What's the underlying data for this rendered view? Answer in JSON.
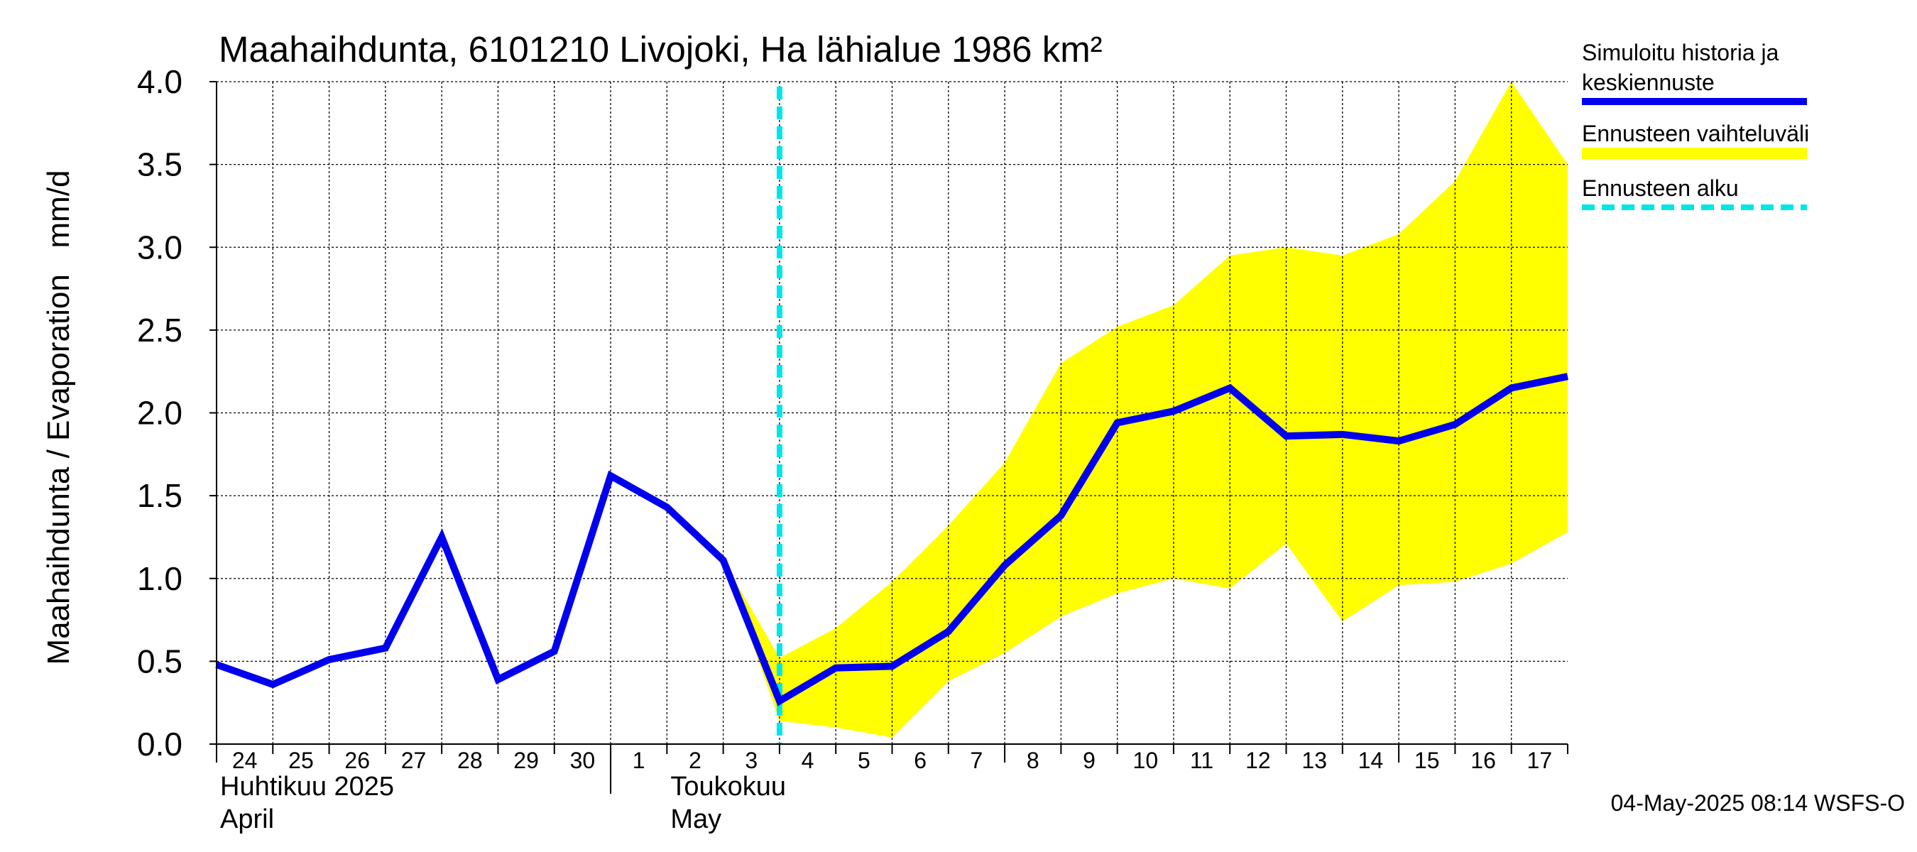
{
  "chart_data": {
    "type": "line",
    "title": "Maahaihdunta, 6101210 Livojoki, Ha lähialue 1986 km²",
    "ylabel": "Maahaihdunta / Evaporation   mm/d",
    "ylim": [
      0,
      4
    ],
    "y_ticks": [
      "0.0",
      "0.5",
      "1.0",
      "1.5",
      "2.0",
      "2.5",
      "3.0",
      "3.5",
      "4.0"
    ],
    "x_day_labels": [
      "24",
      "25",
      "26",
      "27",
      "28",
      "29",
      "30",
      "1",
      "2",
      "3",
      "4",
      "5",
      "6",
      "7",
      "8",
      "9",
      "10",
      "11",
      "12",
      "13",
      "14",
      "15",
      "16",
      "17"
    ],
    "month_labels": [
      {
        "fi": "Huhtikuu  2025",
        "en": "April"
      },
      {
        "fi": "Toukokuu",
        "en": "May"
      }
    ],
    "grid": true,
    "legend_position": "right",
    "series": [
      {
        "name": "Simuloitu historia ja keskiennuste",
        "color": "#0000ee",
        "x_days": [
          0,
          1,
          2,
          3,
          4,
          5,
          6,
          7,
          8,
          9,
          10,
          11,
          12,
          13,
          14,
          15,
          16,
          17,
          18,
          19,
          20,
          21,
          22,
          23,
          24
        ],
        "values": [
          0.48,
          0.36,
          0.51,
          0.58,
          1.25,
          0.39,
          0.56,
          1.62,
          1.43,
          1.11,
          0.26,
          0.46,
          0.47,
          0.68,
          1.08,
          1.38,
          1.94,
          2.01,
          2.15,
          1.86,
          1.87,
          1.83,
          1.93,
          2.15,
          2.22
        ]
      },
      {
        "name": "Ennusteen vaihteluväli",
        "color": "#ffff00",
        "x_days": [
          9,
          10,
          11,
          12,
          13,
          14,
          15,
          16,
          17,
          18,
          19,
          20,
          21,
          22,
          23,
          24
        ],
        "upper": [
          1.11,
          0.52,
          0.7,
          0.98,
          1.32,
          1.7,
          2.3,
          2.52,
          2.65,
          2.95,
          3.0,
          2.95,
          3.08,
          3.4,
          4.0,
          3.5
        ],
        "lower": [
          1.11,
          0.14,
          0.1,
          0.04,
          0.38,
          0.55,
          0.77,
          0.91,
          1.0,
          0.94,
          1.21,
          0.74,
          0.96,
          0.98,
          1.09,
          1.28
        ]
      },
      {
        "name": "Ennusteen alku",
        "color": "#00e5e5",
        "x_day": 10
      }
    ],
    "footer": "04-May-2025 08:14 WSFS-O"
  }
}
